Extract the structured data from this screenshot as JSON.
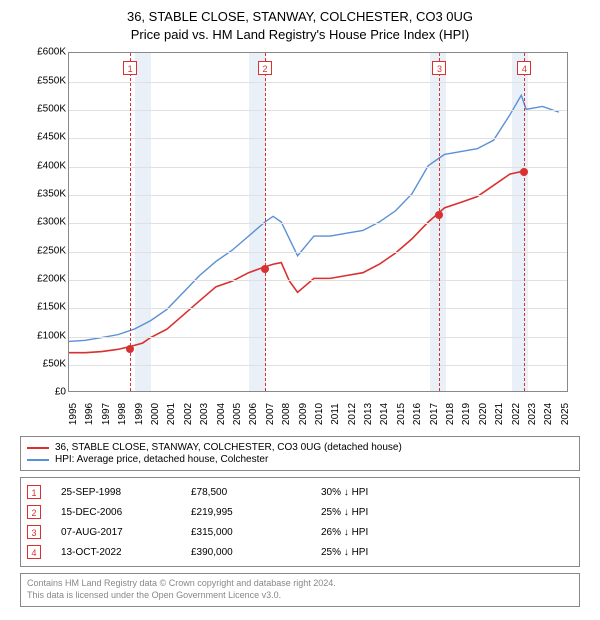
{
  "title_line1": "36, STABLE CLOSE, STANWAY, COLCHESTER, CO3 0UG",
  "title_line2": "Price paid vs. HM Land Registry's House Price Index (HPI)",
  "chart": {
    "type": "line",
    "xlim": [
      1995,
      2025.5
    ],
    "ylim": [
      0,
      600
    ],
    "yticks": [
      0,
      50,
      100,
      150,
      200,
      250,
      300,
      350,
      400,
      450,
      500,
      550,
      600
    ],
    "ytick_labels": [
      "£0",
      "£50K",
      "£100K",
      "£150K",
      "£200K",
      "£250K",
      "£300K",
      "£350K",
      "£400K",
      "£450K",
      "£500K",
      "£550K",
      "£600K"
    ],
    "xticks": [
      1995,
      1996,
      1997,
      1998,
      1999,
      2000,
      2001,
      2002,
      2003,
      2004,
      2005,
      2006,
      2007,
      2008,
      2009,
      2010,
      2011,
      2012,
      2013,
      2014,
      2015,
      2016,
      2017,
      2018,
      2019,
      2020,
      2021,
      2022,
      2023,
      2024,
      2025
    ],
    "bands": [
      [
        1999,
        2000
      ],
      [
        2006,
        2007
      ],
      [
        2017,
        2018
      ],
      [
        2022,
        2023
      ]
    ],
    "grid_color": "#e0e0e0",
    "background_color": "#ffffff",
    "band_color": "#eaf0f8",
    "series_red": {
      "color": "#d93030",
      "width": 1.6,
      "x": [
        1995,
        1996,
        1997,
        1998,
        1998.7,
        1999.5,
        2000,
        2001,
        2002,
        2003,
        2004,
        2005,
        2006,
        2006.96,
        2007.5,
        2008,
        2008.5,
        2009,
        2010,
        2011,
        2012,
        2013,
        2014,
        2015,
        2016,
        2017,
        2017.6,
        2018,
        2019,
        2020,
        2021,
        2022,
        2022.78
      ],
      "y": [
        68,
        68,
        70,
        74,
        78.5,
        85,
        95,
        110,
        135,
        160,
        185,
        195,
        210,
        220,
        225,
        228,
        195,
        175,
        200,
        200,
        205,
        210,
        225,
        245,
        270,
        300,
        315,
        325,
        335,
        345,
        365,
        385,
        390
      ]
    },
    "series_blue": {
      "color": "#5b8fd6",
      "width": 1.4,
      "x": [
        1995,
        1996,
        1997,
        1998,
        1999,
        2000,
        2001,
        2002,
        2003,
        2004,
        2005,
        2006,
        2007,
        2007.5,
        2008,
        2008.7,
        2009,
        2010,
        2011,
        2012,
        2013,
        2014,
        2015,
        2016,
        2017,
        2018,
        2019,
        2020,
        2021,
        2022,
        2022.7,
        2023,
        2024,
        2025
      ],
      "y": [
        88,
        90,
        95,
        100,
        110,
        125,
        145,
        175,
        205,
        230,
        250,
        275,
        300,
        310,
        300,
        258,
        240,
        275,
        275,
        280,
        285,
        300,
        320,
        350,
        400,
        420,
        425,
        430,
        445,
        490,
        525,
        500,
        505,
        495
      ]
    },
    "sale_markers": [
      {
        "n": "1",
        "x": 1998.73,
        "y": 78.5
      },
      {
        "n": "2",
        "x": 2006.96,
        "y": 220
      },
      {
        "n": "3",
        "x": 2017.6,
        "y": 315
      },
      {
        "n": "4",
        "x": 2022.78,
        "y": 390
      }
    ],
    "label_fontsize": 10
  },
  "legend": {
    "rows": [
      {
        "color": "#d93030",
        "label": "36, STABLE CLOSE, STANWAY, COLCHESTER, CO3 0UG (detached house)"
      },
      {
        "color": "#5b8fd6",
        "label": "HPI: Average price, detached house, Colchester"
      }
    ]
  },
  "table": {
    "hpi_label": "HPI",
    "rows": [
      {
        "n": "1",
        "date": "25-SEP-1998",
        "price": "£78,500",
        "pct": "30% ↓"
      },
      {
        "n": "2",
        "date": "15-DEC-2006",
        "price": "£219,995",
        "pct": "25% ↓"
      },
      {
        "n": "3",
        "date": "07-AUG-2017",
        "price": "£315,000",
        "pct": "26% ↓"
      },
      {
        "n": "4",
        "date": "13-OCT-2022",
        "price": "£390,000",
        "pct": "25% ↓"
      }
    ]
  },
  "footer": {
    "line1": "Contains HM Land Registry data © Crown copyright and database right 2024.",
    "line2": "This data is licensed under the Open Government Licence v3.0."
  }
}
